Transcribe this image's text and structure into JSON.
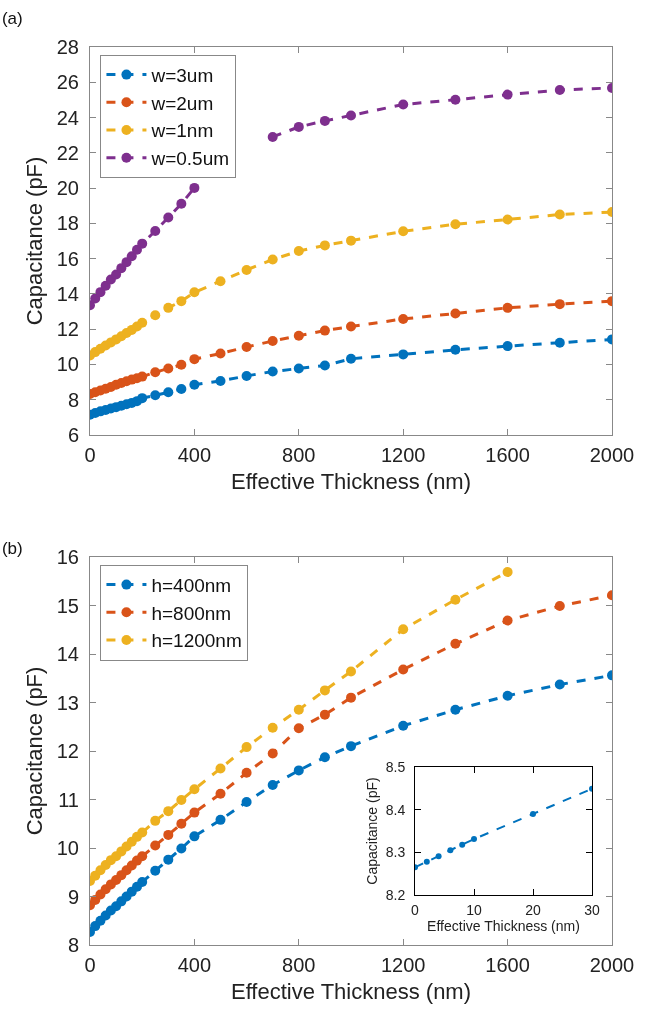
{
  "chart_data": [
    {
      "type": "line",
      "title": "(a)",
      "xlabel": "Effective Thickness (nm)",
      "ylabel": "Capacitance (pF)",
      "x": [
        0,
        20,
        40,
        60,
        80,
        100,
        120,
        140,
        160,
        180,
        200,
        250,
        300,
        350,
        400,
        500,
        600,
        700,
        800,
        900,
        1000,
        1200,
        1400,
        1600,
        1800,
        2000
      ],
      "xlim": [
        0,
        2000
      ],
      "xticks": [
        0,
        400,
        800,
        1200,
        1600,
        2000
      ],
      "ylim": [
        6,
        28
      ],
      "yticks": [
        6,
        8,
        10,
        12,
        14,
        16,
        18,
        20,
        22,
        24,
        26,
        28
      ],
      "grid": false,
      "legend": "top left",
      "marker": "circle",
      "line_style": "dashed",
      "series": [
        {
          "name": "w=3um",
          "color": "#0072bd",
          "values": [
            7.15,
            7.25,
            7.34,
            7.42,
            7.5,
            7.58,
            7.66,
            7.74,
            7.82,
            7.92,
            8.09,
            8.25,
            8.42,
            8.61,
            8.85,
            9.06,
            9.35,
            9.6,
            9.77,
            9.94,
            10.32,
            10.57,
            10.83,
            11.04,
            11.23,
            11.42
          ]
        },
        {
          "name": "w=2um",
          "color": "#d95319",
          "values": [
            8.32,
            8.42,
            8.52,
            8.62,
            8.72,
            8.85,
            8.95,
            9.05,
            9.14,
            9.22,
            9.31,
            9.56,
            9.77,
            9.98,
            10.3,
            10.62,
            10.99,
            11.33,
            11.63,
            11.92,
            12.15,
            12.58,
            12.89,
            13.21,
            13.42,
            13.59
          ]
        },
        {
          "name": "w=1nm",
          "color": "#edb120",
          "values": [
            10.51,
            10.7,
            10.89,
            11.07,
            11.25,
            11.42,
            11.6,
            11.78,
            11.96,
            12.15,
            12.36,
            12.79,
            13.21,
            13.59,
            14.09,
            14.72,
            15.36,
            15.95,
            16.43,
            16.75,
            17.02,
            17.55,
            17.95,
            18.22,
            18.5,
            18.64
          ]
        },
        {
          "name": "w=0.5um",
          "color": "#7e2f8e",
          "values": [
            13.36,
            13.74,
            14.1,
            14.46,
            14.82,
            15.1,
            15.46,
            15.8,
            16.14,
            16.5,
            16.85,
            17.57,
            18.33,
            19.11,
            20.01,
            null,
            null,
            22.9,
            23.47,
            23.81,
            24.12,
            24.74,
            25.01,
            25.3,
            25.56,
            25.68
          ]
        }
      ]
    },
    {
      "type": "line",
      "title": "(b)",
      "xlabel": "Effective Thickness (nm)",
      "ylabel": "Capacitance (pF)",
      "x": [
        0,
        20,
        40,
        60,
        80,
        100,
        120,
        140,
        160,
        180,
        200,
        250,
        300,
        350,
        400,
        500,
        600,
        700,
        800,
        900,
        1000,
        1200,
        1400,
        1600,
        1800,
        2000
      ],
      "xlim": [
        0,
        2000
      ],
      "xticks": [
        0,
        400,
        800,
        1200,
        1600,
        2000
      ],
      "ylim": [
        8,
        16
      ],
      "yticks": [
        8,
        9,
        10,
        11,
        12,
        13,
        14,
        15,
        16
      ],
      "grid": false,
      "legend": "top left",
      "marker": "circle",
      "line_style": "dashed",
      "series": [
        {
          "name": "h=400nm",
          "color": "#0072bd",
          "values": [
            8.27,
            8.39,
            8.5,
            8.61,
            8.71,
            8.8,
            8.9,
            9.0,
            9.1,
            9.2,
            9.3,
            9.53,
            9.76,
            9.99,
            10.24,
            10.58,
            10.95,
            11.3,
            11.6,
            11.87,
            12.1,
            12.52,
            12.85,
            13.14,
            13.37,
            13.56
          ]
        },
        {
          "name": "h=800nm",
          "color": "#d95319",
          "values": [
            8.82,
            8.93,
            9.04,
            9.15,
            9.25,
            9.34,
            9.44,
            9.54,
            9.64,
            9.74,
            9.83,
            10.05,
            10.27,
            10.5,
            10.73,
            11.12,
            11.55,
            11.95,
            12.47,
            12.75,
            13.1,
            13.68,
            14.21,
            14.69,
            14.99,
            15.21
          ]
        },
        {
          "name": "h=1200nm",
          "color": "#edb120",
          "values": [
            9.32,
            9.43,
            9.54,
            9.65,
            9.75,
            9.83,
            9.93,
            10.03,
            10.13,
            10.23,
            10.32,
            10.56,
            10.76,
            10.99,
            11.21,
            11.64,
            12.08,
            12.48,
            12.85,
            13.25,
            13.64,
            14.51,
            15.12,
            15.69,
            null,
            null
          ]
        }
      ]
    },
    {
      "type": "line",
      "xlabel": "Effective Thickness (nm)",
      "ylabel": "Capacitance (pF)",
      "x": [
        0,
        2,
        4,
        6,
        8,
        10,
        20,
        30
      ],
      "xlim": [
        0,
        30
      ],
      "xticks": [
        0,
        10,
        20,
        30
      ],
      "ylim": [
        8.2,
        8.5
      ],
      "yticks": [
        8.2,
        8.3,
        8.4,
        8.5
      ],
      "grid": false,
      "marker": "circle",
      "line_style": "dashed",
      "series": [
        {
          "color": "#0072bd",
          "values": [
            8.265,
            8.278,
            8.291,
            8.305,
            8.318,
            8.331,
            8.39,
            8.449
          ]
        }
      ]
    }
  ]
}
